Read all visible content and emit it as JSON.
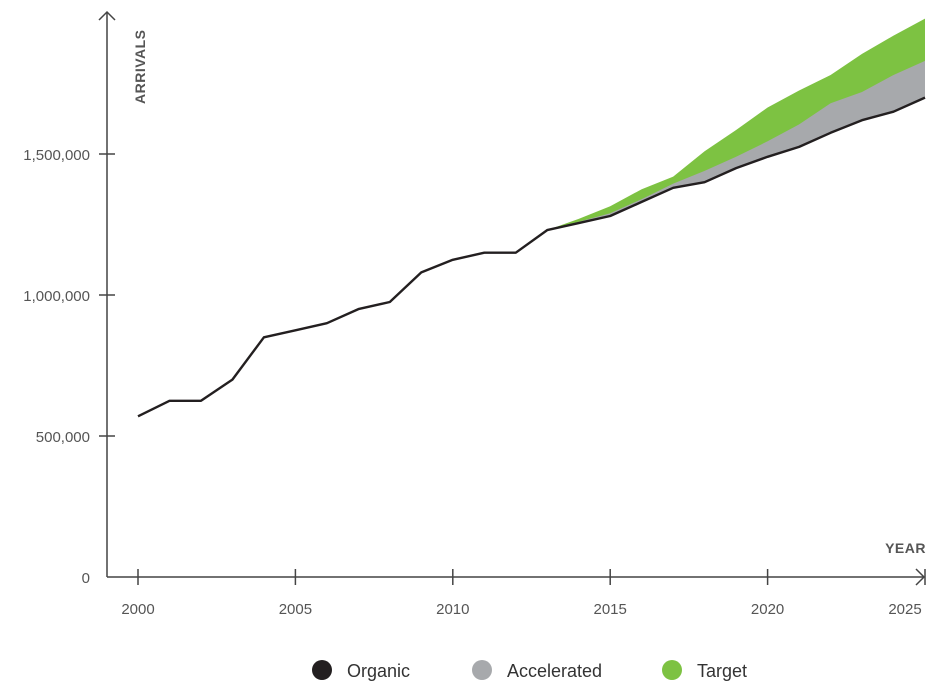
{
  "chart_data": {
    "type": "area",
    "xlabel": "YEAR",
    "ylabel": "ARRIVALS",
    "xlim": [
      2000,
      2025
    ],
    "ylim": [
      0,
      2000000
    ],
    "x_ticks": [
      2000,
      2005,
      2010,
      2015,
      2020,
      2025
    ],
    "x_tick_labels": [
      "2000",
      "2005",
      "2010",
      "2015",
      "2020",
      "2025"
    ],
    "y_ticks": [
      0,
      500000,
      1000000,
      1500000
    ],
    "y_tick_labels": [
      "0",
      "500,000",
      "1,000,000",
      "1,500,000"
    ],
    "grid": false,
    "legend_position": "bottom-center",
    "series": [
      {
        "name": "Organic",
        "color": "#231f20",
        "style": "line",
        "x": [
          2000,
          2001,
          2002,
          2003,
          2004,
          2005,
          2006,
          2007,
          2008,
          2009,
          2010,
          2011,
          2012,
          2013,
          2014,
          2015,
          2016,
          2017,
          2018,
          2019,
          2020,
          2021,
          2022,
          2023,
          2024,
          2025
        ],
        "values": [
          570000,
          625000,
          625000,
          700000,
          850000,
          875000,
          900000,
          950000,
          975000,
          1080000,
          1125000,
          1150000,
          1150000,
          1230000,
          1255000,
          1280000,
          1330000,
          1380000,
          1400000,
          1450000,
          1490000,
          1525000,
          1575000,
          1620000,
          1650000,
          1700000
        ]
      },
      {
        "name": "Accelerated",
        "color": "#a7a9ac",
        "style": "area",
        "x": [
          2013,
          2014,
          2015,
          2016,
          2017,
          2018,
          2019,
          2020,
          2021,
          2022,
          2023,
          2024,
          2025
        ],
        "values": [
          1230000,
          1260000,
          1290000,
          1340000,
          1395000,
          1440000,
          1490000,
          1545000,
          1605000,
          1680000,
          1720000,
          1780000,
          1830000
        ]
      },
      {
        "name": "Target",
        "color": "#7dc242",
        "style": "area",
        "x": [
          2013,
          2014,
          2015,
          2016,
          2017,
          2018,
          2019,
          2020,
          2021,
          2022,
          2023,
          2024,
          2025
        ],
        "values": [
          1230000,
          1270000,
          1315000,
          1375000,
          1420000,
          1510000,
          1585000,
          1665000,
          1725000,
          1780000,
          1855000,
          1920000,
          1980000
        ]
      }
    ]
  }
}
